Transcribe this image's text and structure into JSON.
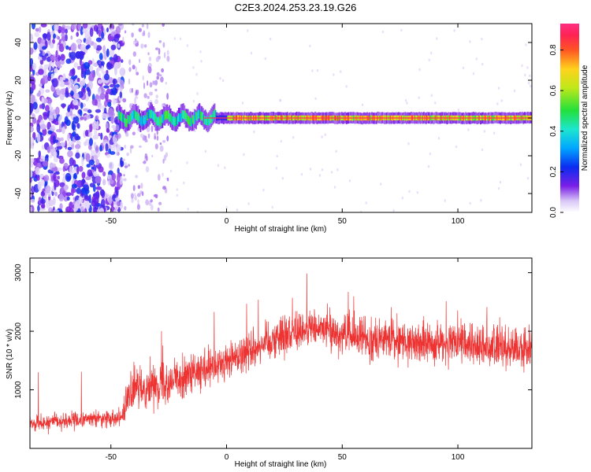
{
  "title": "C2E3.2024.253.23.19.G26",
  "chart_data": [
    {
      "type": "heatmap",
      "xlabel": "Height of straight line (km)",
      "ylabel": "Frequency (Hz)",
      "xlim": [
        -85,
        132
      ],
      "ylim": [
        -50,
        50
      ],
      "xticks": [
        -50,
        0,
        50,
        100
      ],
      "yticks": [
        -40,
        -20,
        0,
        20,
        40
      ],
      "colorbar": {
        "label": "Normalized spectral amplitude",
        "ticks": [
          0.0,
          0.2,
          0.4,
          0.6,
          0.8
        ],
        "range": [
          0,
          0.93
        ]
      },
      "features": {
        "noise_region_x": [
          -85,
          -45
        ],
        "weak_scatter_x": [
          -45,
          -25
        ],
        "carrier_start_x": -47,
        "carrier_freq_hz": 0,
        "carrier_peak_amplitude": 0.9
      }
    },
    {
      "type": "line",
      "xlabel": "Height of straight line (km)",
      "ylabel": "SNR (10 * v/v)",
      "xlim": [
        -85,
        132
      ],
      "ylim": [
        0,
        3250
      ],
      "xticks": [
        -50,
        0,
        50,
        100
      ],
      "yticks": [
        1000,
        2000,
        3000
      ],
      "color": "#ee3333",
      "series": [
        {
          "x": [
            -85,
            -80,
            -75,
            -70,
            -65,
            -60,
            -55,
            -50,
            -45,
            -42,
            -40,
            -35,
            -30,
            -25,
            -20,
            -15,
            -10,
            -5,
            0,
            5,
            10,
            15,
            20,
            25,
            30,
            35,
            40,
            45,
            50,
            55,
            60,
            65,
            70,
            75,
            80,
            85,
            90,
            95,
            100,
            105,
            110,
            115,
            120,
            125,
            130,
            132
          ],
          "values": [
            420,
            430,
            450,
            470,
            480,
            500,
            510,
            520,
            560,
            900,
            1000,
            1050,
            1100,
            1150,
            1200,
            1250,
            1300,
            1380,
            1480,
            1580,
            1680,
            1780,
            1880,
            1950,
            2000,
            2050,
            2050,
            2000,
            1950,
            1900,
            1880,
            1860,
            1850,
            1840,
            1820,
            1800,
            1800,
            1790,
            1780,
            1780,
            1760,
            1740,
            1720,
            1700,
            1680,
            1680
          ]
        }
      ]
    }
  ]
}
